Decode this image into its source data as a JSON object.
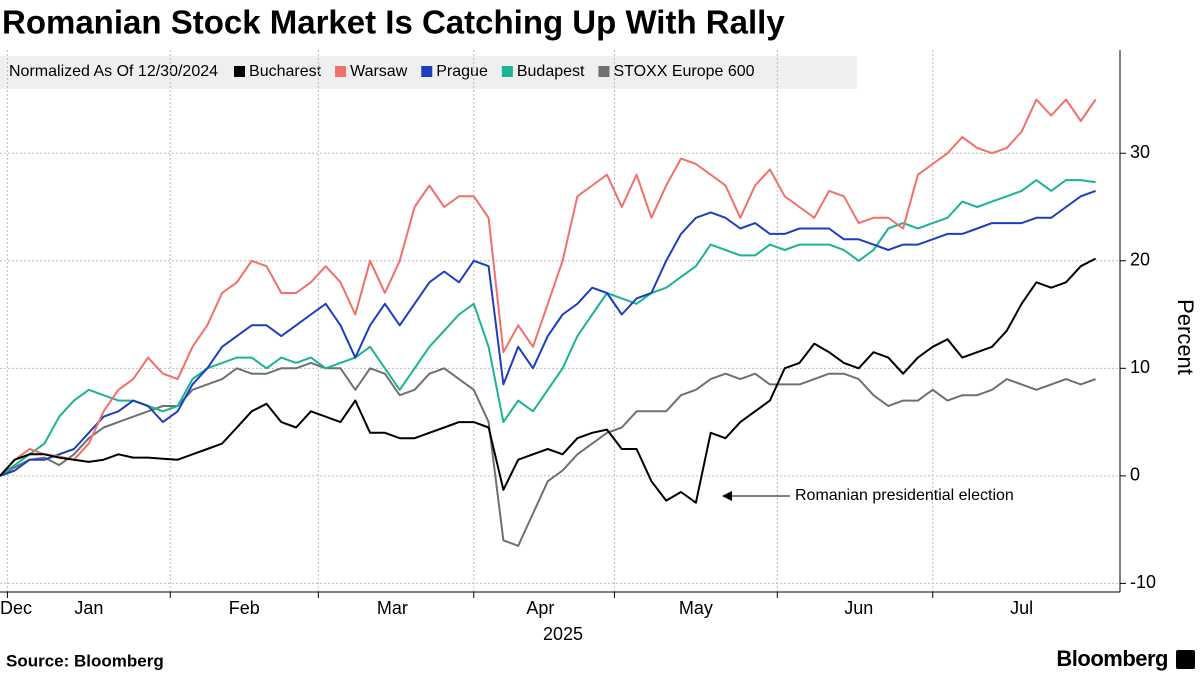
{
  "chart_data": {
    "type": "line",
    "title": "Romanian Stock Market Is Catching Up With Rally",
    "legend_title": "Normalized As Of 12/30/2024",
    "ylabel": "Percent",
    "xlabel": "2025",
    "source": "Source: Bloomberg",
    "brand": "Bloomberg",
    "annotation": "Romanian presidential election",
    "grid": true,
    "legend": "top-left",
    "xlim": [
      0,
      149
    ],
    "ylim": [
      -10.8,
      39.6
    ],
    "yticks": [
      -10,
      0,
      10,
      20,
      30
    ],
    "xgrid": [
      1,
      23,
      43,
      64,
      83,
      105,
      126
    ],
    "xticks": [
      {
        "value": 2,
        "label": "Dec"
      },
      {
        "value": 12,
        "label": "Jan"
      },
      {
        "value": 33,
        "label": "Feb"
      },
      {
        "value": 53,
        "label": "Mar"
      },
      {
        "value": 73,
        "label": "Apr"
      },
      {
        "value": 94,
        "label": "May"
      },
      {
        "value": 116,
        "label": "Jun"
      },
      {
        "value": 138,
        "label": "Jul"
      }
    ],
    "x": [
      0,
      2,
      4,
      6,
      8,
      10,
      12,
      14,
      16,
      18,
      20,
      22,
      24,
      26,
      28,
      30,
      32,
      34,
      36,
      38,
      40,
      42,
      44,
      46,
      48,
      50,
      52,
      54,
      56,
      58,
      60,
      62,
      64,
      66,
      68,
      70,
      72,
      74,
      76,
      78,
      80,
      82,
      84,
      86,
      88,
      90,
      92,
      94,
      96,
      98,
      100,
      102,
      104,
      106,
      108,
      110,
      112,
      114,
      116,
      118,
      120,
      122,
      124,
      126,
      128,
      130,
      132,
      134,
      136,
      138,
      140,
      142,
      144,
      146,
      148
    ],
    "series": [
      {
        "name": "Bucharest",
        "color": "#000000",
        "values": [
          0,
          1.5,
          2,
          2,
          1.7,
          1.5,
          1.3,
          1.5,
          2,
          1.7,
          1.7,
          1.6,
          1.5,
          2,
          2.5,
          3,
          4.5,
          6,
          6.7,
          5,
          4.5,
          6,
          5.5,
          5,
          7,
          4,
          4,
          3.5,
          3.5,
          4,
          4.5,
          5,
          5,
          4.5,
          -1.3,
          1.5,
          2,
          2.5,
          2,
          3.5,
          4,
          4.3,
          2.5,
          2.5,
          -0.5,
          -2.3,
          -1.5,
          -2.5,
          4,
          3.5,
          5,
          6,
          7,
          10,
          10.5,
          12.3,
          11.5,
          10.5,
          10,
          11.5,
          11,
          9.5,
          11,
          12,
          12.7,
          11,
          11.5,
          12,
          13.5,
          16,
          18,
          17.5,
          18,
          19.5,
          20.2
        ]
      },
      {
        "name": "Warsaw",
        "color": "#f0706a",
        "values": [
          0,
          1.5,
          2.5,
          2,
          1.8,
          1.5,
          3,
          6,
          8,
          9,
          11,
          9.5,
          9,
          12,
          14,
          17,
          18,
          20,
          19.5,
          17,
          17,
          18,
          19.5,
          18,
          15,
          20,
          17,
          20,
          25,
          27,
          25,
          26,
          26,
          24,
          11.5,
          14,
          12,
          16,
          20,
          26,
          27,
          28,
          25,
          28,
          24,
          27,
          29.5,
          29,
          28,
          27,
          24,
          27,
          28.5,
          26,
          25,
          24,
          26.5,
          26,
          23.5,
          24,
          24,
          23,
          28,
          29,
          30,
          31.5,
          30.5,
          30,
          30.5,
          32,
          35,
          33.5,
          35,
          33,
          35
        ]
      },
      {
        "name": "Prague",
        "color": "#1d3fbf",
        "values": [
          0,
          0.5,
          1.5,
          1.5,
          2,
          2.5,
          4,
          5.5,
          6,
          7,
          6.5,
          5,
          6,
          8.5,
          10,
          12,
          13,
          14,
          14,
          13,
          14,
          15,
          16,
          14,
          11,
          14,
          16,
          14,
          16,
          18,
          19,
          18,
          20,
          19.5,
          8.5,
          12,
          10,
          13,
          15,
          16,
          17.5,
          17,
          15,
          16.5,
          17,
          20,
          22.5,
          24,
          24.5,
          24,
          23,
          23.5,
          22.5,
          22.5,
          23,
          23,
          23,
          22,
          22,
          21.5,
          21,
          21.5,
          21.5,
          22,
          22.5,
          22.5,
          23,
          23.5,
          23.5,
          23.5,
          24,
          24,
          25,
          26,
          26.5
        ]
      },
      {
        "name": "Budapest",
        "color": "#1bb394",
        "values": [
          0,
          1,
          2,
          3,
          5.5,
          7,
          8,
          7.5,
          7,
          7,
          6.5,
          6,
          6.5,
          9,
          10,
          10.5,
          11,
          11,
          10,
          11,
          10.5,
          11,
          10,
          10.5,
          11,
          12,
          10,
          8,
          10,
          12,
          13.5,
          15,
          16,
          12,
          5,
          7,
          6,
          8,
          10,
          13,
          15,
          17,
          16.5,
          16,
          17,
          17.5,
          18.5,
          19.5,
          21.5,
          21,
          20.5,
          20.5,
          21.5,
          21,
          21.5,
          21.5,
          21.5,
          21,
          20,
          21,
          23,
          23.5,
          23,
          23.5,
          24,
          25.5,
          25,
          25.5,
          26,
          26.5,
          27.5,
          26.5,
          27.5,
          27.5,
          27.3
        ]
      },
      {
        "name": "STOXX Europe 600",
        "color": "#707070",
        "values": [
          0,
          0.8,
          1.5,
          1.7,
          1,
          2,
          3.5,
          4.5,
          5,
          5.5,
          6,
          6.5,
          6.5,
          8,
          8.5,
          9,
          10,
          9.5,
          9.5,
          10,
          10,
          10.5,
          10,
          10,
          8,
          10,
          9.5,
          7.5,
          8,
          9.5,
          10,
          9,
          8,
          5,
          -6,
          -6.5,
          -3.5,
          -0.5,
          0.5,
          2,
          3,
          4,
          4.5,
          6,
          6,
          6,
          7.5,
          8,
          9,
          9.5,
          9,
          9.5,
          8.5,
          8.5,
          8.5,
          9,
          9.5,
          9.5,
          9,
          7.5,
          6.5,
          7,
          7,
          8,
          7,
          7.5,
          7.5,
          8,
          9,
          8.5,
          8,
          8.5,
          9,
          8.5,
          9
        ]
      }
    ]
  }
}
